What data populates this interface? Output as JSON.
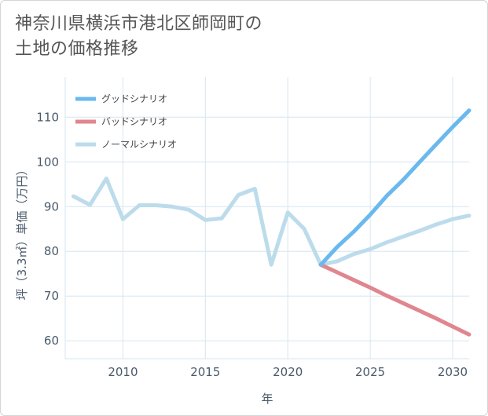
{
  "title_lines": [
    "神奈川県横浜市港北区師岡町の",
    "土地の価格推移"
  ],
  "chart_data": {
    "type": "line",
    "xlabel": "年",
    "ylabel": "坪（3.3㎡）単価（万円）",
    "xlim": [
      2006.5,
      2031
    ],
    "ylim": [
      56,
      119
    ],
    "xticks": [
      2010,
      2015,
      2020,
      2025,
      2030
    ],
    "yticks": [
      60,
      70,
      80,
      90,
      100,
      110
    ],
    "grid": true,
    "legend_position": "top-left",
    "series": [
      {
        "name": "グッドシナリオ",
        "color": "#6ab9ee",
        "x": [
          2022,
          2023,
          2024,
          2025,
          2026,
          2027,
          2028,
          2029,
          2030,
          2031
        ],
        "values": [
          77.0,
          81.0,
          84.4,
          88.2,
          92.4,
          96.0,
          100.0,
          103.9,
          107.8,
          111.5
        ]
      },
      {
        "name": "バッドシナリオ",
        "color": "#e0868f",
        "x": [
          2022,
          2023,
          2024,
          2025,
          2026,
          2027,
          2028,
          2029,
          2030,
          2031
        ],
        "values": [
          77.0,
          75.3,
          73.6,
          71.9,
          70.1,
          68.4,
          66.7,
          65.0,
          63.2,
          61.4
        ]
      },
      {
        "name": "ノーマルシナリオ",
        "color": "#bcdcec",
        "x": [
          2007,
          2008,
          2009,
          2010,
          2011,
          2012,
          2013,
          2014,
          2015,
          2016,
          2017,
          2018,
          2019,
          2020,
          2021,
          2022,
          2023,
          2024,
          2025,
          2026,
          2027,
          2028,
          2029,
          2030,
          2031
        ],
        "values": [
          92.3,
          90.4,
          96.3,
          87.2,
          90.3,
          90.3,
          90.0,
          89.3,
          87.0,
          87.4,
          92.6,
          94.0,
          77.0,
          88.7,
          85.0,
          77.0,
          77.8,
          79.4,
          80.5,
          82.0,
          83.3,
          84.6,
          86.0,
          87.2,
          88.0
        ]
      }
    ]
  }
}
